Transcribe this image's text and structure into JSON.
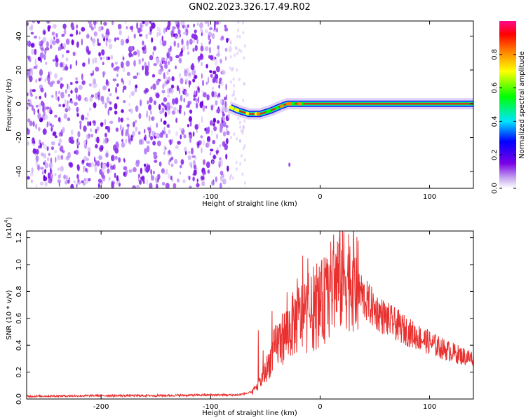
{
  "title": "GN02.2023.326.17.49.R02",
  "chart_data": [
    {
      "type": "heatmap",
      "xlabel": "Height of straight line (km)",
      "ylabel": "Frequency (Hz)",
      "xlim": [
        -268,
        140
      ],
      "ylim": [
        -50,
        49
      ],
      "xticks": [
        -200,
        -100,
        0,
        100
      ],
      "yticks": [
        -40,
        -20,
        0,
        20,
        40
      ],
      "colorbar": {
        "label": "Normalized spectral amplitude",
        "range": [
          0.0,
          1.0
        ],
        "ticks": [
          "0.0",
          "0.2",
          "0.4",
          "0.6",
          "0.8"
        ],
        "tick_values": [
          0.0,
          0.2,
          0.4,
          0.6,
          0.8
        ],
        "colormap": "rainbow (white-purple-blue-cyan-green-yellow-red-magenta)"
      },
      "features": {
        "noise_region_x": [
          -268,
          -82
        ],
        "meteor_track": [
          {
            "x": -82,
            "freq": -2
          },
          {
            "x": -75,
            "freq": -4
          },
          {
            "x": -65,
            "freq": -6
          },
          {
            "x": -55,
            "freq": -6
          },
          {
            "x": -45,
            "freq": -4
          },
          {
            "x": -38,
            "freq": -2
          },
          {
            "x": -30,
            "freq": 0
          },
          {
            "x": -20,
            "freq": 0
          },
          {
            "x": 0,
            "freq": 0
          },
          {
            "x": 140,
            "freq": 0
          }
        ]
      }
    },
    {
      "type": "line",
      "xlabel": "Height of straight line (km)",
      "ylabel": "SNR (10 * v/v)",
      "yscale_label": "(x10",
      "yscale_exp": "4",
      "yscale_close": ")",
      "xlim": [
        -268,
        140
      ],
      "ylim": [
        0,
        1.25
      ],
      "xticks": [
        -200,
        -100,
        0,
        100
      ],
      "yticks": [
        "0.0",
        "0.2",
        "0.4",
        "0.6",
        "0.8",
        "1.0",
        "1.2"
      ],
      "ytick_values": [
        0,
        0.2,
        0.4,
        0.6,
        0.8,
        1.0,
        1.2
      ],
      "series": [
        {
          "color": "#e8302f",
          "x": [
            -268,
            -200,
            -150,
            -100,
            -75,
            -62,
            -55,
            -50,
            -45,
            -40,
            -35,
            -30,
            -25,
            -20,
            -15,
            -10,
            -5,
            0,
            5,
            10,
            15,
            20,
            25,
            30,
            35,
            40,
            50,
            60,
            70,
            80,
            90,
            100,
            110,
            120,
            130,
            140
          ],
          "y": [
            0.02,
            0.025,
            0.025,
            0.03,
            0.03,
            0.05,
            0.12,
            0.2,
            0.3,
            0.4,
            0.45,
            0.5,
            0.55,
            0.6,
            0.62,
            0.62,
            0.65,
            0.7,
            0.75,
            0.82,
            0.88,
            0.9,
            0.92,
            0.9,
            0.82,
            0.75,
            0.66,
            0.6,
            0.55,
            0.5,
            0.46,
            0.42,
            0.38,
            0.35,
            0.32,
            0.3
          ]
        }
      ]
    }
  ]
}
